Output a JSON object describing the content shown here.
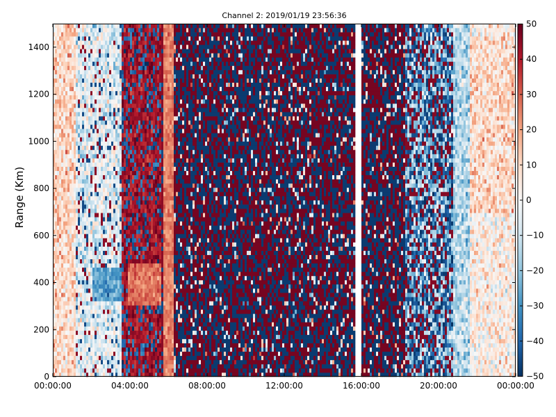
{
  "chart_data": {
    "type": "heatmap",
    "title": "Channel 2: 2019/01/19 23:56:36",
    "xlabel": "",
    "ylabel": "Range (Km)",
    "x_range": [
      "00:00:00",
      "00:00:00 (+1 day)"
    ],
    "x_tick_labels": [
      "00:00:00",
      "04:00:00",
      "08:00:00",
      "12:00:00",
      "16:00:00",
      "20:00:00",
      "00:00:00"
    ],
    "ylim": [
      0,
      1500
    ],
    "y_tick_labels": [
      "0",
      "200",
      "400",
      "600",
      "800",
      "1000",
      "1200",
      "1400"
    ],
    "colorbar": {
      "colormap": "RdBu_r",
      "range": [
        -50,
        50
      ],
      "tick_labels": [
        "50",
        "40",
        "30",
        "20",
        "10",
        "0",
        "−10",
        "−20",
        "−30",
        "−40",
        "−50"
      ]
    },
    "grid": false,
    "legend": "colorbar-right",
    "field_description": "Noisy Doppler-like field; light/white near 0 at start and end of day (with blue patch near 400 Km around 02:00-04:00), strongly saturated red/blue speckle between roughly 04:00 and 20:00, narrow orange band near 06:00, data gap near 16:00.",
    "features": [
      {
        "hours": [
          0,
          3.6
        ],
        "character": "mixed pale red/blue, mostly near 0"
      },
      {
        "hours": [
          2.0,
          4.0
        ],
        "range_km": [
          330,
          470
        ],
        "character": "blue patch about -30"
      },
      {
        "hours": [
          3.6,
          5.6
        ],
        "character": "mostly red about +40, red patch 300-480 Km"
      },
      {
        "hours": [
          5.7,
          6.3
        ],
        "character": "narrow orange band about +25"
      },
      {
        "hours": [
          6.3,
          15.7
        ],
        "character": "saturated red/blue speckle ±50"
      },
      {
        "hours": [
          15.7,
          15.95
        ],
        "character": "no data gap"
      },
      {
        "hours": [
          15.95,
          18.3
        ],
        "character": "saturated red/blue speckle ±50"
      },
      {
        "hours": [
          18.3,
          20.8
        ],
        "character": "mixed blue and red speckle"
      },
      {
        "hours": [
          20.8,
          24
        ],
        "character": "pale mixed, slight red tint near top"
      }
    ]
  }
}
